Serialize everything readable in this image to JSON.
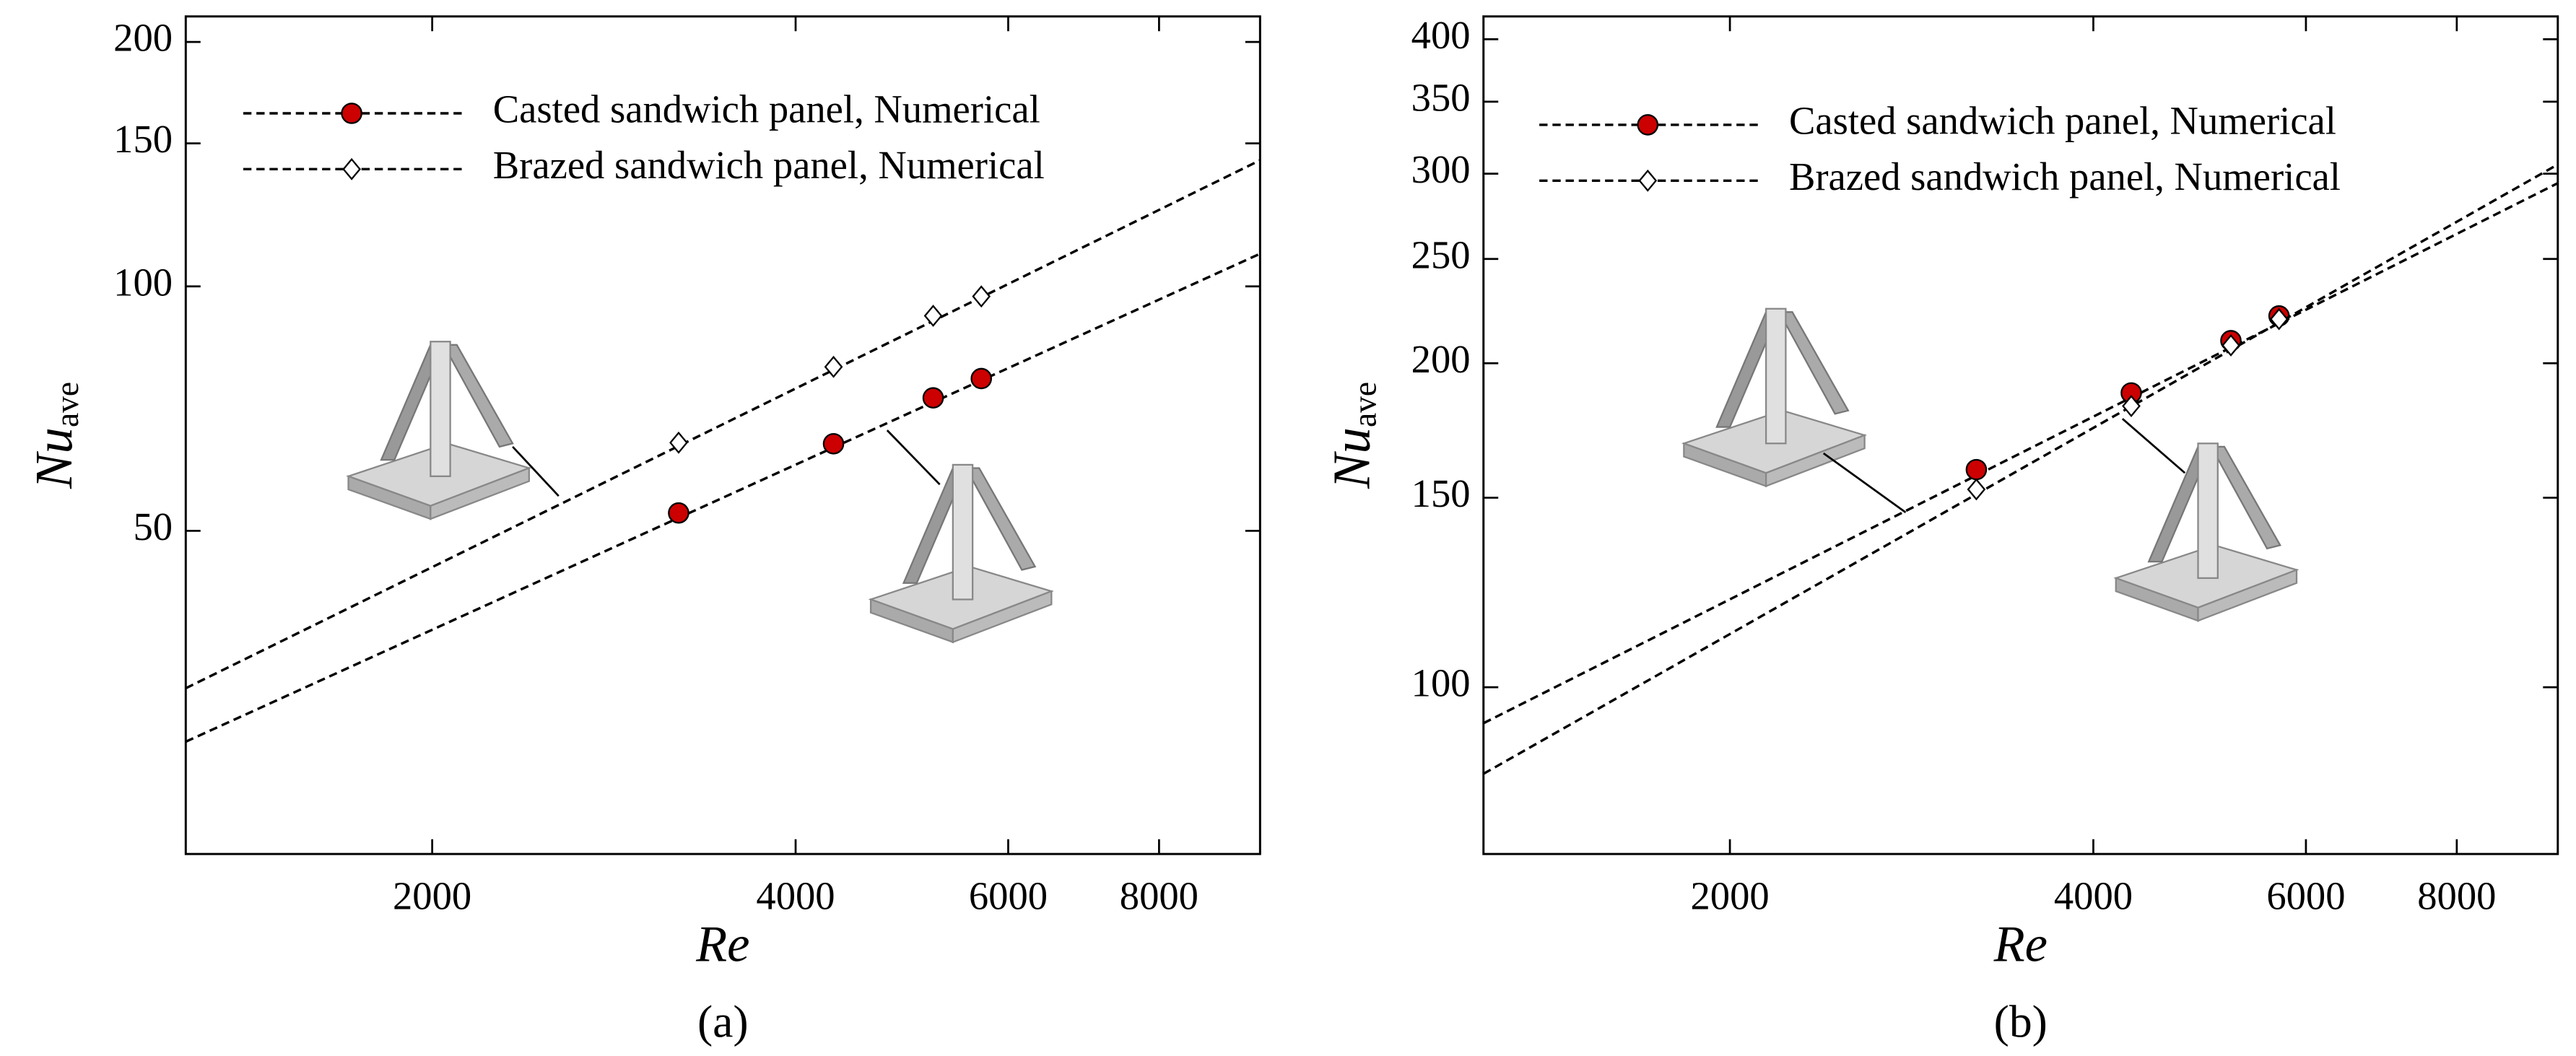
{
  "chart_data": [
    {
      "type": "scatter",
      "xscale": "log",
      "yscale": "log",
      "x_label": "Re",
      "y_label": "Nu",
      "y_label_sub": "ave",
      "panel_label": "(a)",
      "xlim": [
        1250,
        9700
      ],
      "xticks": [
        2000,
        4000,
        6000,
        8000
      ],
      "ylim": [
        20,
        215
      ],
      "yticks": [
        50,
        100,
        150,
        200
      ],
      "series": [
        {
          "name": "Casted sandwich panel, Numerical",
          "color": "#cc0000",
          "marker": "circle",
          "x": [
            3200,
            4300,
            5200,
            5700
          ],
          "values": [
            52.6,
            64.0,
            72.9,
            77.0
          ],
          "fit_x": [
            1250,
            9700
          ],
          "fit_values": [
            27.5,
            109.7
          ]
        },
        {
          "name": "Brazed sandwich panel, Numerical",
          "color": "#ffffff",
          "marker": "diamond",
          "x": [
            3200,
            4300,
            5200,
            5700
          ],
          "values": [
            64.2,
            79.6,
            92.0,
            97.2
          ],
          "fit_x": [
            1250,
            9700
          ],
          "fit_values": [
            32.0,
            143
          ]
        }
      ]
    },
    {
      "type": "scatter",
      "xscale": "log",
      "yscale": "log",
      "x_label": "Re",
      "y_label": "Nu",
      "y_label_sub": "ave",
      "panel_label": "(b)",
      "xlim": [
        1250,
        9700
      ],
      "xticks": [
        2000,
        4000,
        6000,
        8000
      ],
      "ylim": [
        70,
        420
      ],
      "yticks": [
        100,
        150,
        200,
        250,
        300,
        350,
        400
      ],
      "series": [
        {
          "name": "Casted sandwich panel, Numerical",
          "color": "#cc0000",
          "marker": "circle",
          "x": [
            3200,
            4300,
            5200,
            5700
          ],
          "values": [
            159.3,
            187.7,
            209.9,
            221.3
          ],
          "fit_x": [
            1250,
            9700
          ],
          "fit_values": [
            92.6,
            294
          ]
        },
        {
          "name": "Brazed sandwich panel, Numerical",
          "color": "#ffffff",
          "marker": "diamond",
          "x": [
            3200,
            4300,
            5200,
            5700
          ],
          "values": [
            152.7,
            182.5,
            207.8,
            219.8
          ],
          "fit_x": [
            1250,
            9700
          ],
          "fit_values": [
            83.1,
            306
          ]
        }
      ]
    }
  ]
}
